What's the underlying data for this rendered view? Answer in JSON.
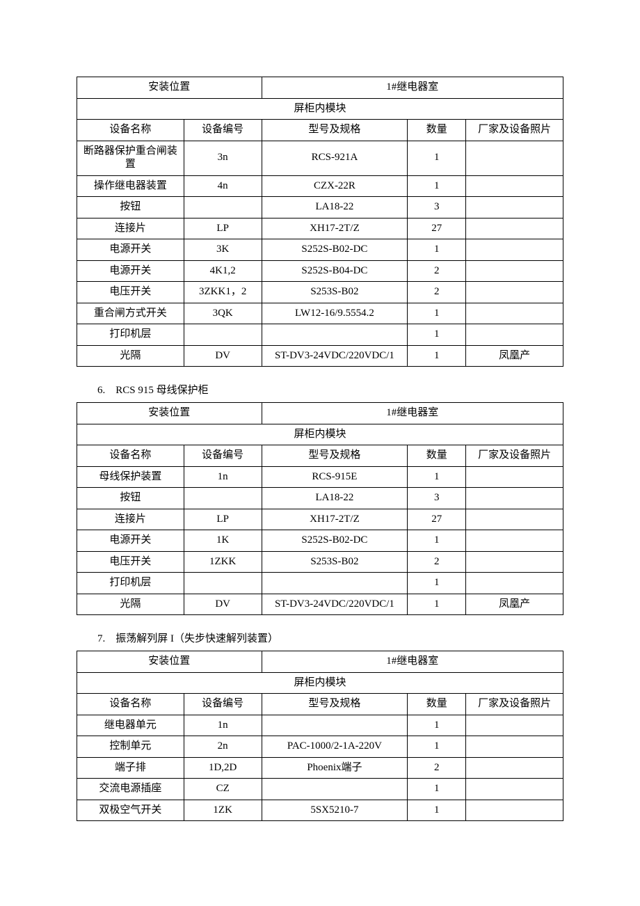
{
  "headers": {
    "install_loc": "安装位置",
    "relay_room": "1#继电器室",
    "cabinet_module": "屏柜内模块",
    "equip_name": "设备名称",
    "equip_code": "设备编号",
    "model_spec": "型号及规格",
    "quantity": "数量",
    "vendor_photo": "厂家及设备照片"
  },
  "tables": [
    {
      "title": "",
      "rows": [
        [
          "断路器保护重合闸装置",
          "3n",
          "RCS-921A",
          "1",
          ""
        ],
        [
          "操作继电器装置",
          "4n",
          "CZX-22R",
          "1",
          ""
        ],
        [
          "按钮",
          "",
          "LA18-22",
          "3",
          ""
        ],
        [
          "连接片",
          "LP",
          "XH17-2T/Z",
          "27",
          ""
        ],
        [
          "电源开关",
          "3K",
          "S252S-B02-DC",
          "1",
          ""
        ],
        [
          "电源开关",
          "4K1,2",
          "S252S-B04-DC",
          "2",
          ""
        ],
        [
          "电压开关",
          "3ZKK1，2",
          "S253S-B02",
          "2",
          ""
        ],
        [
          "重合闸方式开关",
          "3QK",
          "LW12-16/9.5554.2",
          "1",
          ""
        ],
        [
          "打印机层",
          "",
          "",
          "1",
          ""
        ],
        [
          "光隔",
          "DV",
          "ST-DV3-24VDC/220VDC/1",
          "1",
          "凤凰产"
        ]
      ]
    },
    {
      "title": "6.　RCS 915 母线保护柜",
      "rows": [
        [
          "母线保护装置",
          "1n",
          "RCS-915E",
          "1",
          ""
        ],
        [
          "按钮",
          "",
          "LA18-22",
          "3",
          ""
        ],
        [
          "连接片",
          "LP",
          "XH17-2T/Z",
          "27",
          ""
        ],
        [
          "电源开关",
          "1K",
          "S252S-B02-DC",
          "1",
          ""
        ],
        [
          "电压开关",
          "1ZKK",
          "S253S-B02",
          "2",
          ""
        ],
        [
          "打印机层",
          "",
          "",
          "1",
          ""
        ],
        [
          "光隔",
          "DV",
          "ST-DV3-24VDC/220VDC/1",
          "1",
          "凤凰产"
        ]
      ]
    },
    {
      "title": "7.　振荡解列屏 I（失步快速解列装置）",
      "rows": [
        [
          "继电器单元",
          "1n",
          "",
          "1",
          ""
        ],
        [
          "控制单元",
          "2n",
          "PAC-1000/2-1A-220V",
          "1",
          ""
        ],
        [
          "端子排",
          "1D,2D",
          "Phoenix端子",
          "2",
          ""
        ],
        [
          "交流电源插座",
          "CZ",
          "",
          "1",
          ""
        ],
        [
          "双极空气开关",
          "1ZK",
          "5SX5210-7",
          "1",
          ""
        ]
      ]
    }
  ]
}
